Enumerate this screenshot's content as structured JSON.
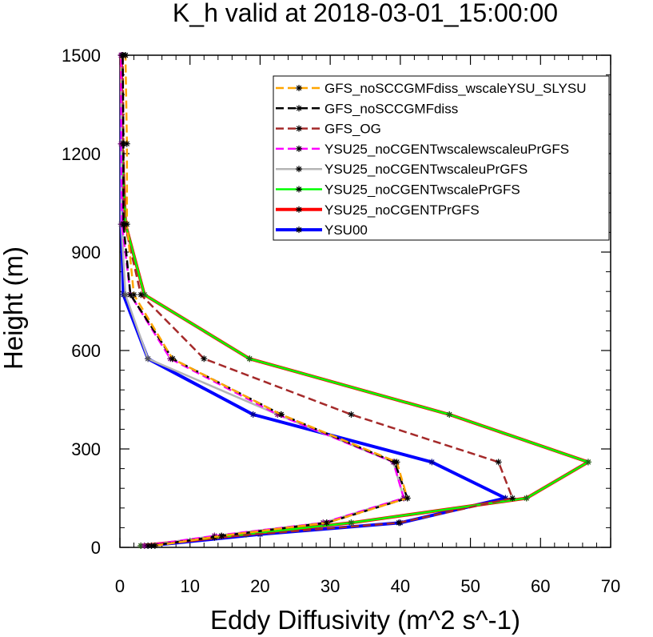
{
  "chart_data": {
    "type": "line",
    "title": "K_h valid at 2018-03-01_15:00:00",
    "xlabel": "Eddy Diffusivity (m^2 s^-1)",
    "ylabel": "Height (m)",
    "xlim": [
      0,
      70
    ],
    "ylim": [
      0,
      1500
    ],
    "xticks": [
      0,
      10,
      20,
      30,
      40,
      50,
      60,
      70
    ],
    "yticks": [
      0,
      300,
      600,
      900,
      1200,
      1500
    ],
    "legend_position": "top-right",
    "grid": false,
    "series": [
      {
        "name": "GFS_noSCCGMFdiss_wscaleYSU_SLYSU",
        "color": "#ffa500",
        "dash": "dash",
        "x": [
          5,
          14.5,
          29.5,
          41,
          39.5,
          23,
          7.5,
          2,
          1,
          1,
          0.8,
          0.8
        ],
        "y": [
          5,
          35,
          75,
          150,
          260,
          405,
          575,
          770,
          985,
          1230,
          1500,
          1500
        ]
      },
      {
        "name": "GFS_noSCCGMFdiss",
        "color": "#000000",
        "dash": "dash",
        "x": [
          4.5,
          14.5,
          29.5,
          41,
          39.2,
          23,
          7.5,
          1.5,
          0.5,
          0.5,
          0.4,
          0.4
        ],
        "y": [
          5,
          35,
          75,
          150,
          260,
          405,
          575,
          770,
          985,
          1230,
          1500,
          1500
        ]
      },
      {
        "name": "GFS_OG",
        "color": "#a52a2a",
        "dash": "dash",
        "x": [
          4,
          13.5,
          39.8,
          56,
          54,
          33,
          12,
          3,
          0.7,
          0.5,
          0.4,
          0.4
        ],
        "y": [
          5,
          30,
          75,
          150,
          260,
          405,
          575,
          770,
          985,
          1230,
          1500,
          1500
        ]
      },
      {
        "name": "YSU25_noCGENTwscalewscaleuPrGFS",
        "color": "#ff00ff",
        "dash": "dash",
        "x": [
          3.5,
          13.5,
          29,
          40.5,
          39,
          22.5,
          7.2,
          1.5,
          0.3,
          0.2,
          0.2,
          0.2
        ],
        "y": [
          5,
          35,
          75,
          150,
          260,
          405,
          575,
          770,
          985,
          1230,
          1500,
          1500
        ]
      },
      {
        "name": "YSU25_noCGENTwscaleuPrGFS",
        "color": "#b5b5b5",
        "dash": "solid",
        "x": [
          3.5,
          13.5,
          29,
          40.5,
          39,
          22.5,
          4,
          0.8,
          0.2,
          0.2,
          0.2,
          0.2
        ],
        "y": [
          5,
          35,
          75,
          150,
          260,
          405,
          575,
          770,
          985,
          1230,
          1500,
          1500
        ]
      },
      {
        "name": "YSU25_noCGENTwscalePrGFS",
        "color": "#00ff00",
        "dash": "solid",
        "x": [
          3,
          18,
          33,
          58,
          66.8,
          47,
          18.5,
          3.5,
          0.8,
          0.3,
          0.2,
          0.2
        ],
        "y": [
          5,
          40,
          75,
          150,
          260,
          405,
          575,
          770,
          985,
          1230,
          1500,
          1500
        ]
      },
      {
        "name": "YSU25_noCGENTPrGFS",
        "color": "#ff0000",
        "dash": "solid",
        "x": [
          3,
          18,
          33,
          58,
          66.8,
          47,
          18.5,
          3.5,
          0.8,
          0.3,
          0.2,
          0.2
        ],
        "y": [
          5,
          40,
          75,
          150,
          260,
          405,
          575,
          770,
          985,
          1230,
          1500,
          1500
        ]
      },
      {
        "name": "YSU00",
        "color": "#0000ff",
        "dash": "solid",
        "x": [
          4,
          20,
          40,
          55,
          44.5,
          19,
          4,
          0.5,
          0.2,
          0.2,
          0.2,
          0.2
        ],
        "y": [
          5,
          40,
          75,
          150,
          260,
          405,
          575,
          770,
          985,
          1230,
          1500,
          1500
        ]
      }
    ]
  }
}
